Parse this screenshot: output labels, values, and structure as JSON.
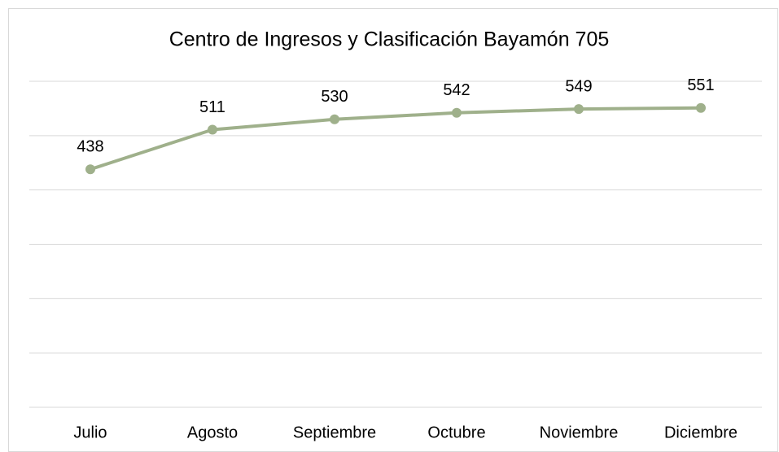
{
  "chart_data": {
    "type": "line",
    "title": "Centro de Ingresos y Clasificación Bayamón 705",
    "categories": [
      "Julio",
      "Agosto",
      "Septiembre",
      "Octubre",
      "Noviembre",
      "Diciembre"
    ],
    "series": [
      {
        "name": "Centro de Ingresos y Clasificación Bayamón 705",
        "color": "#9fb08b",
        "values": [
          438,
          511,
          530,
          542,
          549,
          551
        ]
      }
    ],
    "ylim": [
      0,
      600
    ],
    "yticks": [
      0,
      100,
      200,
      300,
      400,
      500,
      600
    ],
    "grid": true,
    "data_labels": true
  }
}
